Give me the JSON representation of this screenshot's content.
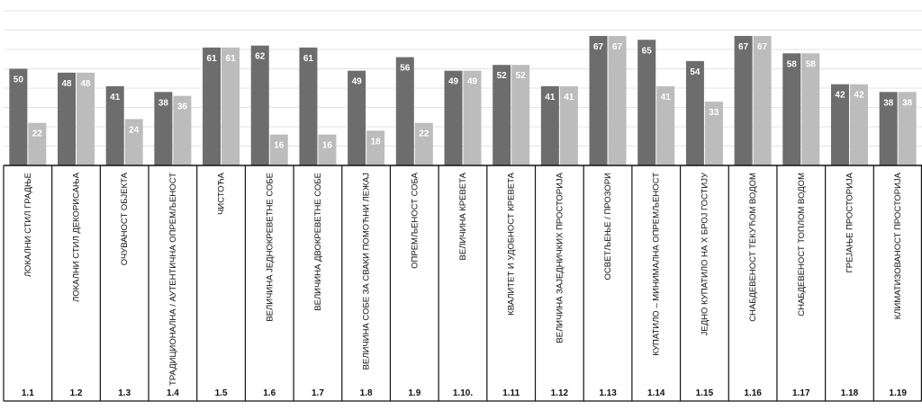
{
  "chart_data": {
    "type": "bar",
    "categories": [
      "ЛОКАЛНИ СТИЛ ГРАДЊЕ",
      "ЛОКАЛНИ СТИЛ ДЕКОРИСАЊА",
      "ОЧУВАНОСТ ОБЈЕКТА",
      "ТРАДИЦИОНАЛНА / АУТЕНТИЧНА ОПРЕМЉЕНОСТ",
      "ЧИСТОЋА",
      "ВЕЛИЧИНА ЈЕДНОКРЕВЕТНЕ СОБЕ",
      "ВЕЛИЧИНА ДВОКРЕВЕТНЕ СОБЕ",
      "ВЕЛИЧИНА СОБЕ ЗА СВАКИ ПОМОЋНИ ЛЕЖАЈ",
      "ОПРЕМЉЕНОСТ СОБА",
      "ВЕЛИЧИНА КРЕВЕТА",
      "КВАЛИТЕТ И УДОБНОСТ КРЕВЕТА",
      "ВЕЛИЧИНА ЗАЈЕДНИЧКИХ ПРОСТОРИЈА",
      "ОСВЕТЉЕЊЕ / ПРОЗОРИ",
      "КУПАТИЛО – МИНИМАЛНА ОПРЕМЉЕНОСТ",
      "ЈЕДНО КУПАТИЛО НА Х БРОЈ ГОСТИЈУ",
      "СНАБДЕВЕНОСТ ТЕКУЋОМ ВОДОМ",
      "СНАБДЕВЕНОСТ ТОПЛОМ ВОДОМ",
      "ГРЕЈАЊЕ ПРОСТОРИЈА",
      "КЛИМАТИЗОВАНОСТ ПРОСТОРИЈА"
    ],
    "codes": [
      "1.1",
      "1.2",
      "1.3",
      "1.4",
      "1.5",
      "1.6",
      "1.7",
      "1.8",
      "1.9",
      "1.10.",
      "1.11",
      "1.12",
      "1.13",
      "1.14",
      "1.15",
      "1.16",
      "1.17",
      "1.18",
      "1.19"
    ],
    "series": [
      {
        "values": [
          50,
          48,
          41,
          38,
          61,
          62,
          61,
          49,
          56,
          49,
          52,
          41,
          67,
          65,
          54,
          67,
          58,
          42,
          38
        ]
      },
      {
        "values": [
          22,
          48,
          24,
          36,
          61,
          16,
          16,
          18,
          22,
          49,
          52,
          41,
          67,
          41,
          33,
          67,
          58,
          42,
          38
        ]
      }
    ],
    "colors": [
      "#6d6d6d",
      "#bcbcbc"
    ],
    "ylim": [
      0,
      80
    ],
    "grid": true
  }
}
